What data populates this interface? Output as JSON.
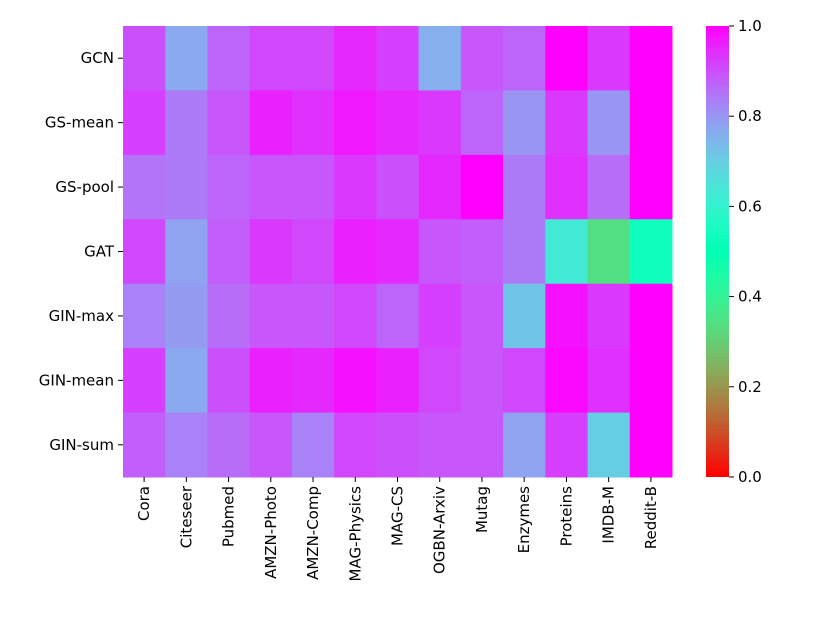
{
  "chart_data": {
    "type": "heatmap",
    "title": "",
    "xlabel": "",
    "ylabel": "",
    "rows": [
      "GCN",
      "GS-mean",
      "GS-pool",
      "GAT",
      "GIN-max",
      "GIN-mean",
      "GIN-sum"
    ],
    "columns": [
      "Cora",
      "Citeseer",
      "Pubmed",
      "AMZN-Photo",
      "AMZN-Comp",
      "MAG-Physics",
      "MAG-CS",
      "OGBN-Arxiv",
      "Mutag",
      "Enzymes",
      "Proteins",
      "IMDB-M",
      "Reddit-B"
    ],
    "values": [
      [
        0.9,
        0.77,
        0.87,
        0.91,
        0.91,
        0.95,
        0.92,
        0.76,
        0.89,
        0.87,
        1.0,
        0.93,
        1.0
      ],
      [
        0.92,
        0.84,
        0.89,
        0.96,
        0.94,
        0.97,
        0.95,
        0.93,
        0.87,
        0.8,
        0.93,
        0.8,
        1.0
      ],
      [
        0.85,
        0.84,
        0.87,
        0.89,
        0.89,
        0.93,
        0.9,
        0.95,
        1.0,
        0.84,
        0.94,
        0.86,
        1.0
      ],
      [
        0.91,
        0.78,
        0.88,
        0.93,
        0.91,
        0.96,
        0.95,
        0.89,
        0.88,
        0.84,
        0.63,
        0.34,
        0.53
      ],
      [
        0.83,
        0.79,
        0.86,
        0.89,
        0.89,
        0.91,
        0.87,
        0.92,
        0.89,
        0.72,
        0.98,
        0.93,
        1.0
      ],
      [
        0.92,
        0.77,
        0.9,
        0.96,
        0.95,
        0.98,
        0.96,
        0.91,
        0.89,
        0.91,
        0.99,
        0.94,
        1.0
      ],
      [
        0.88,
        0.83,
        0.86,
        0.89,
        0.83,
        0.91,
        0.9,
        0.89,
        0.89,
        0.78,
        0.92,
        0.7,
        1.0
      ]
    ],
    "colorbar": {
      "range": [
        0.0,
        1.0
      ],
      "ticks": [
        "0.0",
        "0.2",
        "0.4",
        "0.6",
        "0.8",
        "1.0"
      ],
      "colormap": "rainbow"
    },
    "grid": false,
    "legend": "colorbar-right"
  }
}
